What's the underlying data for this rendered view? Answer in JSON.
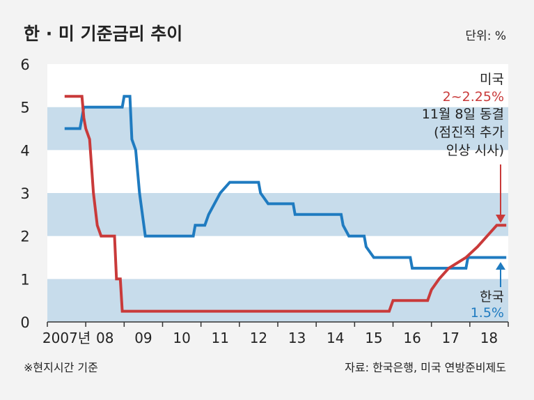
{
  "chart_data": {
    "type": "line",
    "title": "한 · 미 기준금리 추이",
    "unit": "단위: %",
    "yticks": [
      0,
      1,
      2,
      3,
      4,
      5,
      6
    ],
    "ylim": [
      0,
      6
    ],
    "xlim": [
      2007.0,
      2019.0
    ],
    "xticks": [
      {
        "x": 2007.5,
        "label": "2007년"
      },
      {
        "x": 2008.5,
        "label": "08"
      },
      {
        "x": 2009.5,
        "label": "09"
      },
      {
        "x": 2010.5,
        "label": "10"
      },
      {
        "x": 2011.5,
        "label": "11"
      },
      {
        "x": 2012.5,
        "label": "12"
      },
      {
        "x": 2013.5,
        "label": "13"
      },
      {
        "x": 2014.5,
        "label": "14"
      },
      {
        "x": 2015.5,
        "label": "15"
      },
      {
        "x": 2016.5,
        "label": "16"
      },
      {
        "x": 2017.5,
        "label": "17"
      },
      {
        "x": 2018.5,
        "label": "18"
      }
    ],
    "grid": "alternating-bands",
    "series": [
      {
        "name": "미국",
        "color": "#c93a3a",
        "points": [
          [
            2007.45,
            5.25
          ],
          [
            2007.9,
            5.25
          ],
          [
            2007.95,
            4.75
          ],
          [
            2008.0,
            4.5
          ],
          [
            2008.1,
            4.25
          ],
          [
            2008.2,
            3.0
          ],
          [
            2008.3,
            2.25
          ],
          [
            2008.4,
            2.0
          ],
          [
            2008.75,
            2.0
          ],
          [
            2008.8,
            1.0
          ],
          [
            2008.9,
            1.0
          ],
          [
            2008.95,
            0.25
          ],
          [
            2015.9,
            0.25
          ],
          [
            2016.0,
            0.5
          ],
          [
            2016.9,
            0.5
          ],
          [
            2017.0,
            0.75
          ],
          [
            2017.2,
            1.0
          ],
          [
            2017.45,
            1.25
          ],
          [
            2017.9,
            1.5
          ],
          [
            2018.2,
            1.75
          ],
          [
            2018.45,
            2.0
          ],
          [
            2018.7,
            2.25
          ],
          [
            2018.95,
            2.25
          ]
        ]
      },
      {
        "name": "한국",
        "color": "#1f7bc0",
        "points": [
          [
            2007.45,
            4.5
          ],
          [
            2007.85,
            4.5
          ],
          [
            2007.95,
            5.0
          ],
          [
            2008.95,
            5.0
          ],
          [
            2009.0,
            5.25
          ],
          [
            2009.15,
            5.25
          ],
          [
            2009.2,
            4.25
          ],
          [
            2009.3,
            4.0
          ],
          [
            2009.4,
            3.0
          ],
          [
            2009.55,
            2.0
          ],
          [
            2010.8,
            2.0
          ],
          [
            2010.85,
            2.25
          ],
          [
            2011.1,
            2.25
          ],
          [
            2011.2,
            2.5
          ],
          [
            2011.35,
            2.75
          ],
          [
            2011.5,
            3.0
          ],
          [
            2011.75,
            3.25
          ],
          [
            2012.5,
            3.25
          ],
          [
            2012.55,
            3.0
          ],
          [
            2012.75,
            2.75
          ],
          [
            2013.4,
            2.75
          ],
          [
            2013.45,
            2.5
          ],
          [
            2014.65,
            2.5
          ],
          [
            2014.7,
            2.25
          ],
          [
            2014.85,
            2.0
          ],
          [
            2015.25,
            2.0
          ],
          [
            2015.3,
            1.75
          ],
          [
            2015.5,
            1.5
          ],
          [
            2016.45,
            1.5
          ],
          [
            2016.5,
            1.25
          ],
          [
            2017.9,
            1.25
          ],
          [
            2017.95,
            1.5
          ],
          [
            2018.95,
            1.5
          ]
        ]
      }
    ],
    "annotations": {
      "us_name": "미국",
      "us_rate": "2~2.25%",
      "us_note1": "11월 8일 동결",
      "us_note2": "(점진적 추가",
      "us_note3": "인상 시사)",
      "kr_name": "한국",
      "kr_rate": "1.5%"
    },
    "footnote_left": "※현지시간 기준",
    "footnote_right": "자료: 한국은행, 미국 연방준비제도"
  }
}
